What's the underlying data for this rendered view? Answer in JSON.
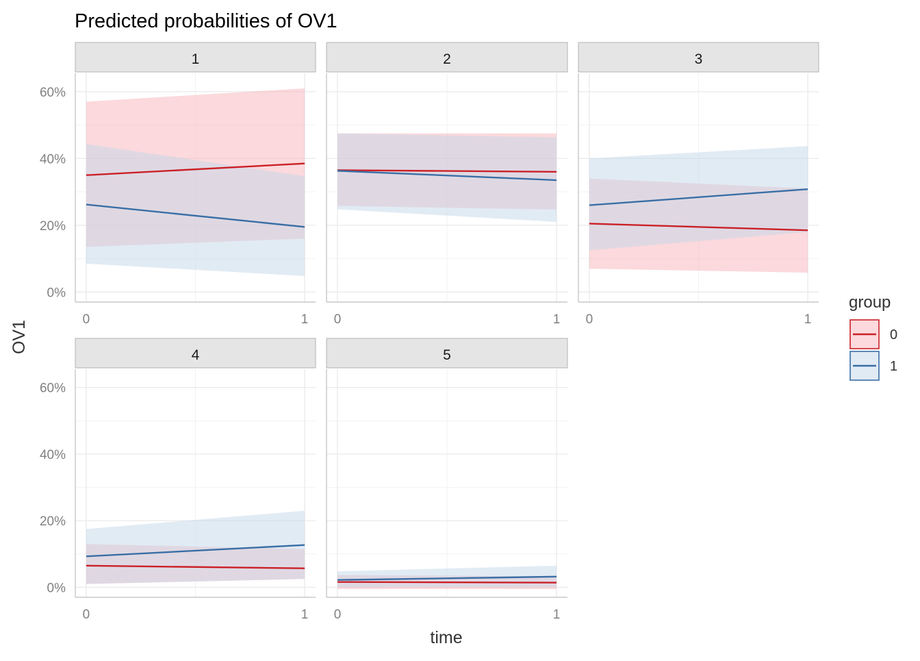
{
  "chart_data": {
    "type": "line",
    "title": "Predicted probabilities of OV1",
    "xlabel": "time",
    "ylabel": "OV1",
    "xlim": [
      -0.05,
      1.05
    ],
    "ylim": [
      -0.03,
      0.655
    ],
    "x_ticks": [
      0,
      1
    ],
    "x_tick_labels": [
      "0",
      "1"
    ],
    "y_ticks": [
      0,
      0.2,
      0.4,
      0.6
    ],
    "y_tick_labels": [
      "0%",
      "20%",
      "40%",
      "60%"
    ],
    "grid": true,
    "legend": {
      "title": "group",
      "placement": "right",
      "entries": [
        {
          "label": "0",
          "color": "#cb2027",
          "fill": "#f8b4b9"
        },
        {
          "label": "1",
          "color": "#3a6ea5",
          "fill": "#c4d8ea"
        }
      ]
    },
    "panels": [
      {
        "label": "1",
        "series": [
          {
            "group": "0",
            "x": [
              0,
              1
            ],
            "y": [
              0.35,
              0.385
            ],
            "lower": [
              0.135,
              0.16
            ],
            "upper": [
              0.57,
              0.61
            ]
          },
          {
            "group": "1",
            "x": [
              0,
              1
            ],
            "y": [
              0.262,
              0.195
            ],
            "lower": [
              0.085,
              0.048
            ],
            "upper": [
              0.443,
              0.347
            ]
          }
        ]
      },
      {
        "label": "2",
        "series": [
          {
            "group": "0",
            "x": [
              0,
              1
            ],
            "y": [
              0.365,
              0.36
            ],
            "lower": [
              0.258,
              0.247
            ],
            "upper": [
              0.475,
              0.475
            ]
          },
          {
            "group": "1",
            "x": [
              0,
              1
            ],
            "y": [
              0.363,
              0.335
            ],
            "lower": [
              0.248,
              0.21
            ],
            "upper": [
              0.475,
              0.463
            ]
          }
        ]
      },
      {
        "label": "3",
        "series": [
          {
            "group": "0",
            "x": [
              0,
              1
            ],
            "y": [
              0.205,
              0.185
            ],
            "lower": [
              0.07,
              0.058
            ],
            "upper": [
              0.34,
              0.31
            ]
          },
          {
            "group": "1",
            "x": [
              0,
              1
            ],
            "y": [
              0.26,
              0.308
            ],
            "lower": [
              0.125,
              0.18
            ],
            "upper": [
              0.4,
              0.437
            ]
          }
        ]
      },
      {
        "label": "4",
        "series": [
          {
            "group": "0",
            "x": [
              0,
              1
            ],
            "y": [
              0.065,
              0.057
            ],
            "lower": [
              0.01,
              0.025
            ],
            "upper": [
              0.13,
              0.115
            ]
          },
          {
            "group": "1",
            "x": [
              0,
              1
            ],
            "y": [
              0.093,
              0.127
            ],
            "lower": [
              0.01,
              0.025
            ],
            "upper": [
              0.175,
              0.23
            ]
          }
        ]
      },
      {
        "label": "5",
        "series": [
          {
            "group": "0",
            "x": [
              0,
              1
            ],
            "y": [
              0.016,
              0.014
            ],
            "lower": [
              -0.005,
              -0.005
            ],
            "upper": [
              0.037,
              0.033
            ]
          },
          {
            "group": "1",
            "x": [
              0,
              1
            ],
            "y": [
              0.022,
              0.032
            ],
            "lower": [
              0.0,
              0.0
            ],
            "upper": [
              0.048,
              0.065
            ]
          }
        ]
      }
    ]
  }
}
